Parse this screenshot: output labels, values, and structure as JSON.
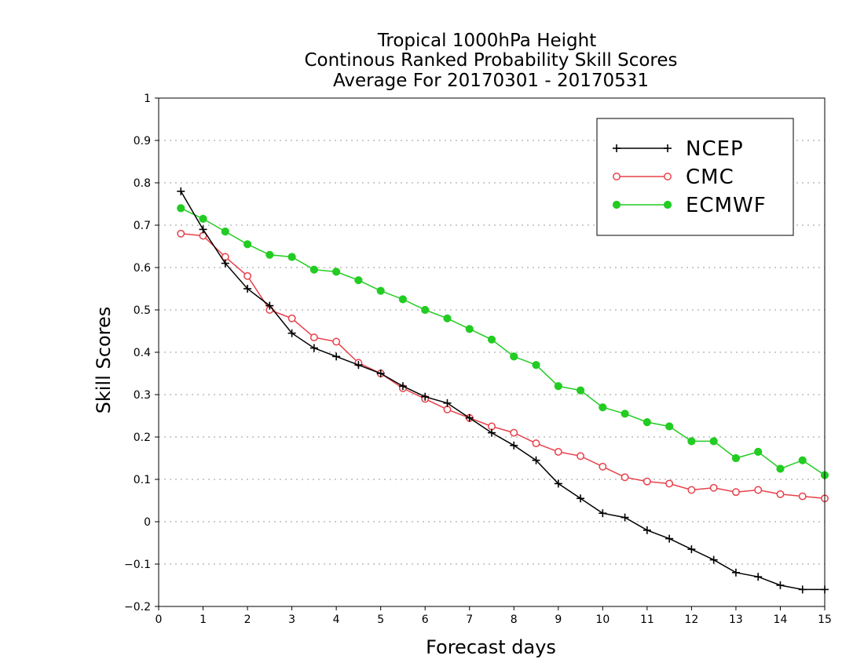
{
  "chart_data": {
    "type": "line",
    "title_lines": [
      "Tropical 1000hPa Height",
      "Continous Ranked Probability Skill Scores",
      "Average For 20170301 - 20170531"
    ],
    "xlabel": "Forecast days",
    "ylabel": "Skill Scores",
    "xlim": [
      0,
      15
    ],
    "ylim": [
      -0.2,
      1
    ],
    "x_ticks": [
      "0",
      "1",
      "2",
      "3",
      "4",
      "5",
      "6",
      "7",
      "8",
      "9",
      "10",
      "11",
      "12",
      "13",
      "14",
      "15"
    ],
    "y_ticks": [
      "−0.2",
      "−0.1",
      "0",
      "0.1",
      "0.2",
      "0.3",
      "0.4",
      "0.5",
      "0.6",
      "0.7",
      "0.8",
      "0.9",
      "1"
    ],
    "grid": "horizontal dotted",
    "legend_position": "top-right",
    "x": [
      0.5,
      1,
      1.5,
      2,
      2.5,
      3,
      3.5,
      4,
      4.5,
      5,
      5.5,
      6,
      6.5,
      7,
      7.5,
      8,
      8.5,
      9,
      9.5,
      10,
      10.5,
      11,
      11.5,
      12,
      12.5,
      13,
      13.5,
      14,
      14.5,
      15
    ],
    "series": [
      {
        "name": "NCEP",
        "color": "#000000",
        "marker": "plus",
        "values": [
          0.78,
          0.69,
          0.61,
          0.55,
          0.51,
          0.445,
          0.41,
          0.39,
          0.37,
          0.35,
          0.32,
          0.295,
          0.28,
          0.245,
          0.21,
          0.18,
          0.145,
          0.09,
          0.055,
          0.02,
          0.01,
          -0.02,
          -0.04,
          -0.065,
          -0.09,
          -0.12,
          -0.13,
          -0.15,
          -0.16,
          -0.16
        ]
      },
      {
        "name": "CMC",
        "color": "#e8404a",
        "marker": "open-circle",
        "values": [
          0.68,
          0.675,
          0.625,
          0.58,
          0.5,
          0.48,
          0.435,
          0.425,
          0.375,
          0.35,
          0.315,
          0.29,
          0.265,
          0.245,
          0.225,
          0.21,
          0.185,
          0.165,
          0.155,
          0.13,
          0.105,
          0.095,
          0.09,
          0.075,
          0.08,
          0.07,
          0.075,
          0.065,
          0.06,
          0.055
        ]
      },
      {
        "name": "ECMWF",
        "color": "#22cc22",
        "marker": "filled-circle",
        "values": [
          0.74,
          0.715,
          0.685,
          0.655,
          0.63,
          0.625,
          0.595,
          0.59,
          0.57,
          0.545,
          0.525,
          0.5,
          0.48,
          0.455,
          0.43,
          0.39,
          0.37,
          0.32,
          0.31,
          0.27,
          0.255,
          0.235,
          0.225,
          0.19,
          0.19,
          0.15,
          0.165,
          0.125,
          0.145,
          0.11
        ]
      }
    ]
  }
}
